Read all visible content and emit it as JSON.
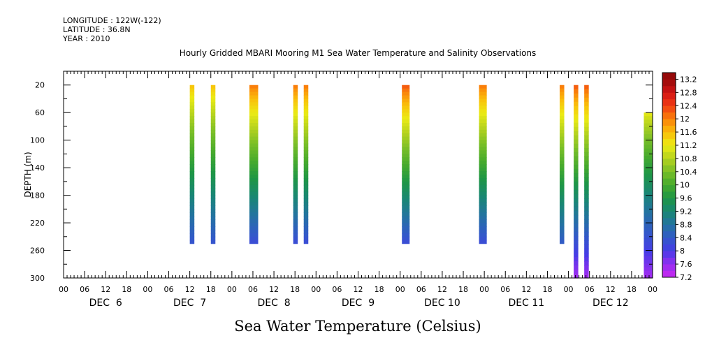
{
  "header": {
    "longitude": "LONGITUDE : 122W(-122)",
    "latitude": "LATITUDE : 36.8N",
    "year": "YEAR : 2010"
  },
  "chart_data": {
    "type": "heatmap",
    "title": "Hourly Gridded MBARI Mooring M1 Sea Water Temperature and Salinity Observations",
    "xlabel": "Sea Water Temperature (Celsius)",
    "ylabel": "DEPTH (m)",
    "ylim": [
      300,
      0
    ],
    "y_ticks": [
      20,
      60,
      100,
      140,
      180,
      220,
      260,
      300
    ],
    "x_range_hours": [
      0,
      168
    ],
    "x_hour_ticks": [
      "00",
      "06",
      "12",
      "18",
      "00",
      "06",
      "12",
      "18",
      "00",
      "06",
      "12",
      "18",
      "00",
      "06",
      "12",
      "18",
      "00",
      "06",
      "12",
      "18",
      "00",
      "06",
      "12",
      "18",
      "00",
      "06",
      "12",
      "18",
      "00"
    ],
    "x_day_labels": [
      "DEC  6",
      "DEC  7",
      "DEC  8",
      "DEC  9",
      "DEC 10",
      "DEC 11",
      "DEC 12"
    ],
    "colorbar": {
      "ticks": [
        13.2,
        12.8,
        12.4,
        12,
        11.6,
        11.2,
        10.8,
        10.4,
        10,
        9.6,
        9.2,
        8.8,
        8.4,
        8,
        7.6,
        7.2
      ],
      "range": [
        7.2,
        13.4
      ]
    },
    "columns": [
      {
        "start": 36,
        "end": 37.3,
        "top": 20,
        "bottom": 250,
        "t_top": 11.6,
        "t_bottom": 8.3
      },
      {
        "start": 42,
        "end": 43.3,
        "top": 20,
        "bottom": 250,
        "t_top": 11.6,
        "t_bottom": 8.3
      },
      {
        "start": 53,
        "end": 55.5,
        "top": 20,
        "bottom": 250,
        "t_top": 12.1,
        "t_bottom": 8.2
      },
      {
        "start": 65.5,
        "end": 66.8,
        "top": 20,
        "bottom": 250,
        "t_top": 12.1,
        "t_bottom": 8.2
      },
      {
        "start": 68.5,
        "end": 69.8,
        "top": 20,
        "bottom": 250,
        "t_top": 12.1,
        "t_bottom": 8.2
      },
      {
        "start": 96.5,
        "end": 98.7,
        "top": 20,
        "bottom": 250,
        "t_top": 12.3,
        "t_bottom": 8.2
      },
      {
        "start": 118.5,
        "end": 120.7,
        "top": 20,
        "bottom": 250,
        "t_top": 12.1,
        "t_bottom": 8.2
      },
      {
        "start": 141.5,
        "end": 142.8,
        "top": 20,
        "bottom": 250,
        "t_top": 12.1,
        "t_bottom": 8.4
      },
      {
        "start": 145.5,
        "end": 146.8,
        "top": 20,
        "bottom": 300,
        "t_top": 12.3,
        "t_bottom": 7.5
      },
      {
        "start": 148.5,
        "end": 149.8,
        "top": 20,
        "bottom": 300,
        "t_top": 12.3,
        "t_bottom": 7.5
      },
      {
        "start": 165.5,
        "end": 168,
        "top": 60,
        "bottom": 300,
        "t_top": 11.2,
        "t_bottom": 7.5
      }
    ]
  }
}
